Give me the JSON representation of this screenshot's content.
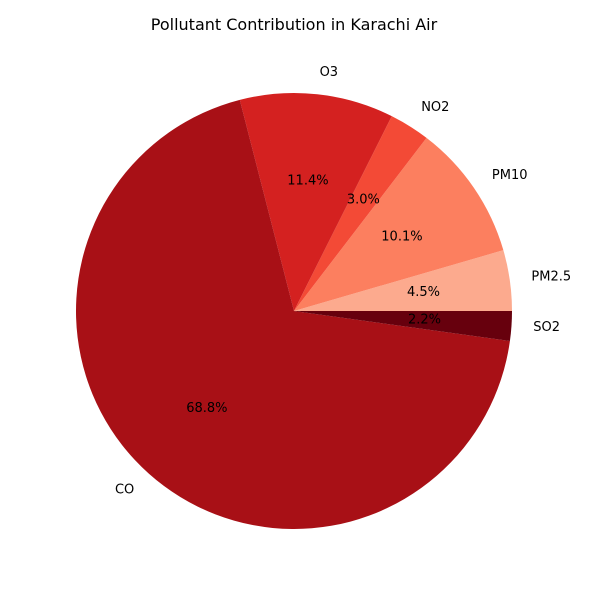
{
  "chart_data": {
    "type": "pie",
    "title": "Pollutant Contribution in Karachi Air",
    "start_angle_deg": 0,
    "direction": "counterclockwise",
    "slices": [
      {
        "label": "PM2.5",
        "value": 4.5,
        "pct_label": "4.5%",
        "color": "#fcaa8e"
      },
      {
        "label": "PM10",
        "value": 10.1,
        "pct_label": "10.1%",
        "color": "#fc7f5f"
      },
      {
        "label": "NO2",
        "value": 3.0,
        "pct_label": "3.0%",
        "color": "#f34a36"
      },
      {
        "label": "O3",
        "value": 11.4,
        "pct_label": "11.4%",
        "color": "#d42120"
      },
      {
        "label": "CO",
        "value": 68.8,
        "pct_label": "68.8%",
        "color": "#a81016"
      },
      {
        "label": "SO2",
        "value": 2.2,
        "pct_label": "2.2%",
        "color": "#67000d"
      }
    ]
  }
}
